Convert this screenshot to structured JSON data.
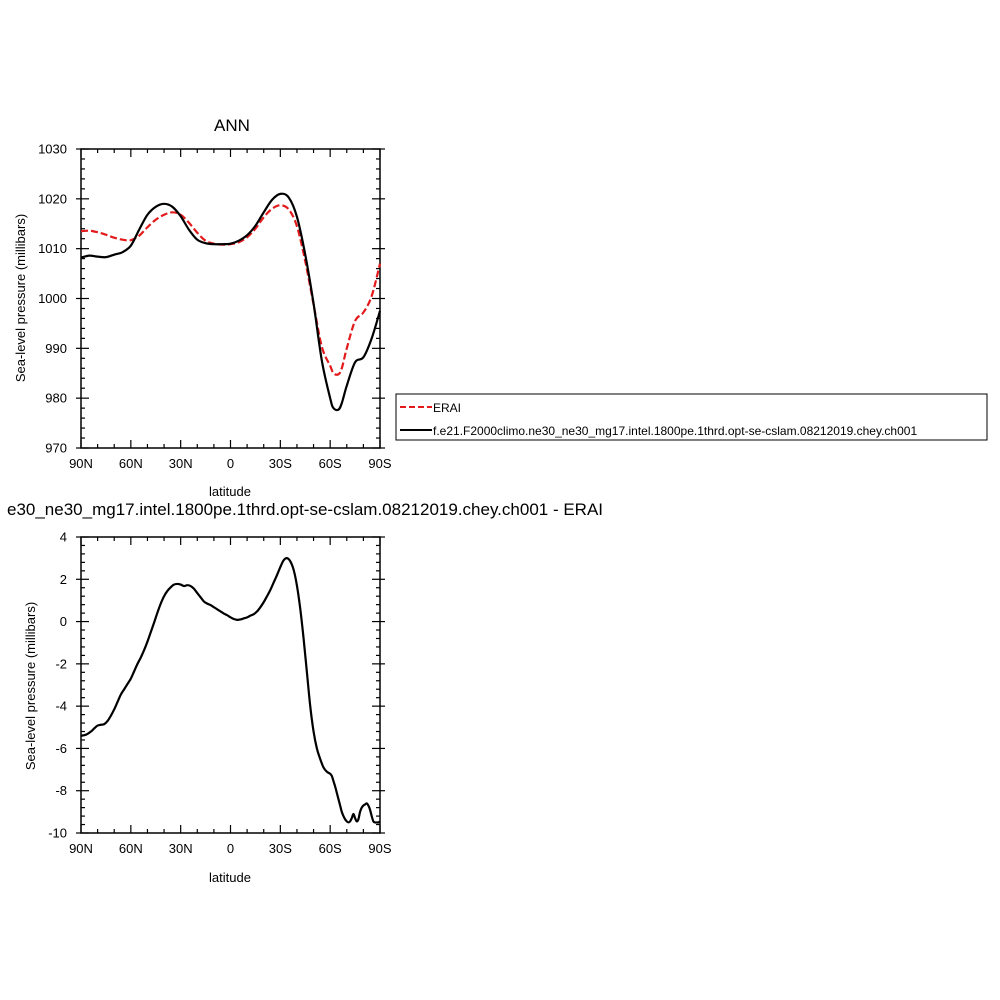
{
  "colors": {
    "erai": "#e31a1c",
    "model": "#000000",
    "axis": "#000000"
  },
  "chart_data": [
    {
      "type": "line",
      "title": "ANN",
      "xlabel": "latitude",
      "ylabel": "Sea-level pressure (millibars)",
      "xlim": [
        -90,
        90
      ],
      "ylim": [
        970,
        1030
      ],
      "xticks": [
        -90,
        -60,
        -30,
        0,
        30,
        60,
        90
      ],
      "xtick_labels": [
        "90N",
        "60N",
        "30N",
        "0",
        "30S",
        "60S",
        "90S"
      ],
      "yticks": [
        970,
        980,
        990,
        1000,
        1010,
        1020,
        1030
      ],
      "ytick_labels": [
        "970",
        "980",
        "990",
        "1000",
        "1010",
        "1020",
        "1030"
      ],
      "legend": {
        "placement": "right",
        "entries": [
          {
            "label": "ERAI",
            "style": "dashed",
            "color": "#e31a1c"
          },
          {
            "label": "f.e21.F2000climo.ne30_ne30_mg17.intel.1800pe.1thrd.opt-se-cslam.08212019.chey.ch001",
            "style": "solid",
            "color": "#000000"
          }
        ]
      },
      "series": [
        {
          "name": "ERAI",
          "style": "dashed",
          "color": "#e31a1c",
          "x": [
            -90,
            -85,
            -80,
            -75,
            -70,
            -65,
            -60,
            -55,
            -50,
            -45,
            -40,
            -35,
            -30,
            -25,
            -20,
            -15,
            -10,
            -5,
            0,
            5,
            10,
            15,
            20,
            25,
            30,
            35,
            40,
            45,
            50,
            55,
            60,
            62,
            65,
            67,
            70,
            75,
            80,
            85,
            90
          ],
          "y": [
            1013.5,
            1013.6,
            1013.3,
            1012.8,
            1012.2,
            1011.8,
            1011.7,
            1012.6,
            1014.3,
            1015.8,
            1016.8,
            1017.3,
            1016.8,
            1015.2,
            1013.2,
            1011.6,
            1011.0,
            1010.8,
            1010.9,
            1011.3,
            1012.3,
            1014.0,
            1016.3,
            1018.0,
            1018.7,
            1017.9,
            1014.5,
            1007.5,
            998.8,
            990.3,
            986.5,
            985.0,
            984.8,
            986.0,
            990.0,
            995.5,
            997.2,
            1000.5,
            1007.0
          ]
        },
        {
          "name": "f.e21.F2000climo.ne30_ne30_mg17.intel.1800pe.1thrd.opt-se-cslam.08212019.chey.ch001",
          "style": "solid",
          "color": "#000000",
          "x": [
            -90,
            -85,
            -80,
            -75,
            -70,
            -65,
            -60,
            -55,
            -50,
            -45,
            -40,
            -35,
            -30,
            -25,
            -20,
            -15,
            -10,
            -5,
            0,
            5,
            10,
            15,
            20,
            25,
            30,
            35,
            40,
            45,
            50,
            55,
            60,
            62,
            65,
            67,
            70,
            75,
            80,
            85,
            90
          ],
          "y": [
            1008.2,
            1008.6,
            1008.4,
            1008.3,
            1008.8,
            1009.3,
            1010.6,
            1013.8,
            1016.8,
            1018.4,
            1019.0,
            1018.4,
            1016.5,
            1013.8,
            1011.8,
            1011.1,
            1010.9,
            1010.9,
            1011.0,
            1011.6,
            1012.7,
            1014.6,
            1017.3,
            1019.8,
            1021.0,
            1020.3,
            1016.4,
            1008.8,
            999.0,
            987.5,
            980.0,
            978.0,
            977.7,
            979.0,
            982.5,
            987.2,
            988.2,
            992.0,
            997.5
          ]
        }
      ]
    },
    {
      "type": "line",
      "title": "e30_ne30_mg17.intel.1800pe.1thrd.opt-se-cslam.08212019.chey.ch001 - ERAI",
      "xlabel": "latitude",
      "ylabel": "Sea-level pressure (millibars)",
      "xlim": [
        -90,
        90
      ],
      "ylim": [
        -10,
        4
      ],
      "xticks": [
        -90,
        -60,
        -30,
        0,
        30,
        60,
        90
      ],
      "xtick_labels": [
        "90N",
        "60N",
        "30N",
        "0",
        "30S",
        "60S",
        "90S"
      ],
      "yticks": [
        -10,
        -8,
        -6,
        -4,
        -2,
        0,
        2,
        4
      ],
      "ytick_labels": [
        "-10",
        "-8",
        "-6",
        "-4",
        "-2",
        "0",
        "2",
        "4"
      ],
      "series": [
        {
          "style": "solid",
          "color": "#000000",
          "x": [
            -90,
            -87,
            -84,
            -82,
            -80,
            -78,
            -76,
            -74,
            -72,
            -70,
            -68,
            -66,
            -64,
            -62,
            -60,
            -58,
            -56,
            -54,
            -52,
            -50,
            -48,
            -46,
            -44,
            -42,
            -40,
            -38,
            -36,
            -34,
            -32,
            -30,
            -28,
            -26,
            -24,
            -22,
            -20,
            -18,
            -16,
            -14,
            -12,
            -10,
            -8,
            -6,
            -4,
            -2,
            0,
            2,
            4,
            6,
            8,
            10,
            12,
            14,
            16,
            18,
            20,
            22,
            24,
            26,
            28,
            30,
            32,
            34,
            36,
            38,
            40,
            42,
            44,
            46,
            48,
            50,
            52,
            54,
            56,
            58,
            60,
            61,
            62,
            63,
            64,
            65,
            66,
            67,
            68,
            69,
            70,
            71,
            72,
            73,
            74,
            75,
            76,
            77,
            78,
            79,
            80,
            81,
            82,
            83,
            84,
            85,
            86,
            87,
            88,
            89,
            90
          ],
          "y": [
            -5.4,
            -5.35,
            -5.2,
            -5.05,
            -4.92,
            -4.88,
            -4.85,
            -4.7,
            -4.45,
            -4.15,
            -3.8,
            -3.45,
            -3.2,
            -2.95,
            -2.7,
            -2.35,
            -2.0,
            -1.7,
            -1.35,
            -0.95,
            -0.5,
            -0.05,
            0.42,
            0.85,
            1.2,
            1.45,
            1.62,
            1.75,
            1.78,
            1.75,
            1.68,
            1.72,
            1.68,
            1.55,
            1.35,
            1.15,
            0.95,
            0.85,
            0.78,
            0.68,
            0.58,
            0.48,
            0.38,
            0.3,
            0.2,
            0.12,
            0.08,
            0.1,
            0.15,
            0.2,
            0.28,
            0.35,
            0.48,
            0.68,
            0.92,
            1.2,
            1.5,
            1.85,
            2.2,
            2.58,
            2.9,
            3.0,
            2.85,
            2.45,
            1.7,
            0.6,
            -0.8,
            -2.4,
            -4.0,
            -5.2,
            -6.0,
            -6.5,
            -6.9,
            -7.1,
            -7.2,
            -7.3,
            -7.55,
            -7.8,
            -8.1,
            -8.4,
            -8.7,
            -9.0,
            -9.2,
            -9.35,
            -9.45,
            -9.5,
            -9.45,
            -9.3,
            -9.1,
            -9.3,
            -9.45,
            -9.35,
            -9.0,
            -8.8,
            -8.7,
            -8.65,
            -8.6,
            -8.7,
            -8.9,
            -9.2,
            -9.45,
            -9.5,
            -9.5,
            -9.5,
            -9.45
          ]
        }
      ]
    }
  ]
}
